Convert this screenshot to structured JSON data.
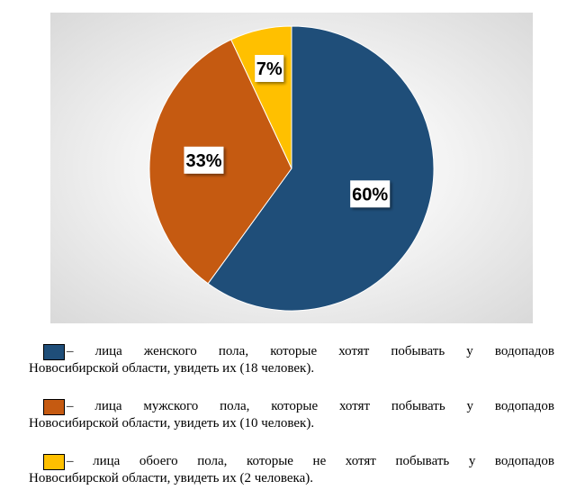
{
  "chart_data": {
    "type": "pie",
    "slices": [
      {
        "label": "60%",
        "value": 60,
        "color": "#1f4e79"
      },
      {
        "label": "33%",
        "value": 33,
        "color": "#c55a11"
      },
      {
        "label": "7%",
        "value": 7,
        "color": "#ffc000"
      }
    ]
  },
  "legend": [
    {
      "color": "#1f4e79",
      "line1": "– лица женского пола, которые хотят побывать у водопадов",
      "line2": "Новосибирской области, увидеть их (18 человек)."
    },
    {
      "color": "#c55a11",
      "line1": "– лица мужского пола, которые хотят побывать у водопадов",
      "line2": "Новосибирской области, увидеть их (10 человек)."
    },
    {
      "color": "#ffc000",
      "line1": "– лица обоего пола, которые не хотят побывать у водопадов",
      "line2": "Новосибирской области, увидеть их (2 человека)."
    }
  ]
}
